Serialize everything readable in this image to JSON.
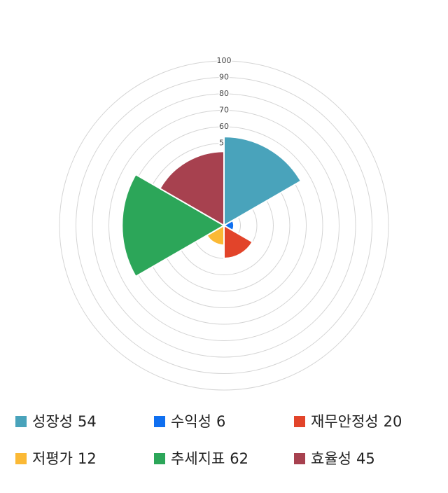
{
  "chart_data": {
    "type": "polar_area",
    "categories": [
      "성장성",
      "수익성",
      "재무안정성",
      "저평가",
      "추세지표",
      "효율성"
    ],
    "values": [
      54,
      6,
      20,
      12,
      62,
      45
    ],
    "colors": [
      "#49a3bb",
      "#0f6ff0",
      "#e2442a",
      "#fbb935",
      "#2ca659",
      "#a7414f"
    ],
    "rlim": [
      0,
      100
    ],
    "rticks": [
      0,
      10,
      20,
      30,
      40,
      50,
      60,
      70,
      80,
      90,
      100
    ]
  }
}
